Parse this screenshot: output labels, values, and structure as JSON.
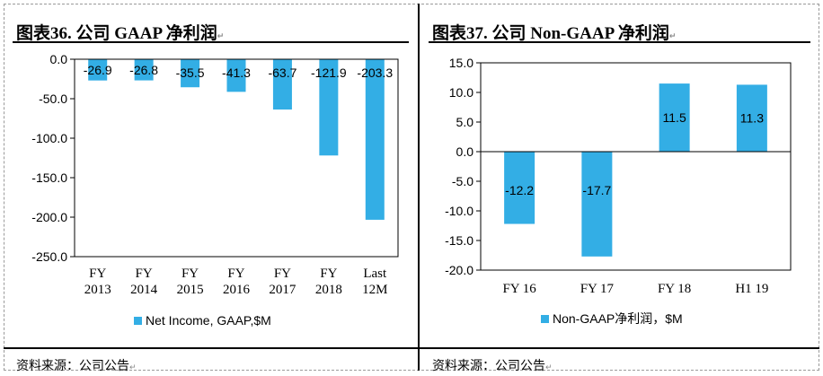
{
  "left_panel": {
    "title": "图表36. 公司 GAAP 净利润",
    "source": "资料来源：公司公告"
  },
  "right_panel": {
    "title": "图表37. 公司 Non-GAAP 净利润",
    "source": "资料来源：公司公告"
  },
  "bar_color": "#33AEE5",
  "chart_data": [
    {
      "type": "bar",
      "categories": [
        [
          "FY",
          "2013"
        ],
        [
          "FY",
          "2014"
        ],
        [
          "FY",
          "2015"
        ],
        [
          "FY",
          "2016"
        ],
        [
          "FY",
          "2017"
        ],
        [
          "FY",
          "2018"
        ],
        [
          "Last",
          "12M"
        ]
      ],
      "series": [
        {
          "name": "Net Income, GAAP,$M",
          "values": [
            -26.9,
            -26.8,
            -35.5,
            -41.3,
            -63.7,
            -121.9,
            -203.3
          ]
        }
      ],
      "data_labels": [
        "-26.9",
        "-26.8",
        "-35.5",
        "-41.3",
        "-63.7",
        "-121.9",
        "-203.3"
      ],
      "ylim": [
        -250,
        0
      ],
      "yticks": [
        0,
        -50,
        -100,
        -150,
        -200,
        -250
      ],
      "ytick_labels": [
        "0.0",
        "-50.0",
        "-100.0",
        "-150.0",
        "-200.0",
        "-250.0"
      ],
      "legend_position": "bottom",
      "grid": false
    },
    {
      "type": "bar",
      "categories": [
        [
          "FY 16"
        ],
        [
          "FY 17"
        ],
        [
          "FY 18"
        ],
        [
          "H1 19"
        ]
      ],
      "series": [
        {
          "name": "Non-GAAP净利润，$M",
          "values": [
            -12.2,
            -17.7,
            11.5,
            11.3
          ]
        }
      ],
      "data_labels": [
        "-12.2",
        "-17.7",
        "11.5",
        "11.3"
      ],
      "ylim": [
        -20,
        15
      ],
      "yticks": [
        15,
        10,
        5,
        0,
        -5,
        -10,
        -15,
        -20
      ],
      "ytick_labels": [
        "15.0",
        "10.0",
        "5.0",
        "0.0",
        "-5.0",
        "-10.0",
        "-15.0",
        "-20.0"
      ],
      "legend_position": "bottom",
      "grid": false
    }
  ]
}
